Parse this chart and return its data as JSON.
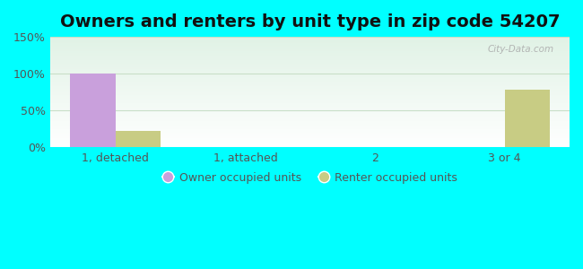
{
  "title": "Owners and renters by unit type in zip code 54207",
  "categories": [
    "1, detached",
    "1, attached",
    "2",
    "3 or 4"
  ],
  "owner_values": [
    100,
    0,
    0,
    0
  ],
  "renter_values": [
    22,
    0,
    0,
    78
  ],
  "owner_color": "#c9a0dc",
  "renter_color": "#c8cc84",
  "ylim": [
    0,
    150
  ],
  "yticks": [
    0,
    50,
    100,
    150
  ],
  "yticklabels": [
    "0%",
    "50%",
    "100%",
    "150%"
  ],
  "bar_width": 0.35,
  "background_outer": "#00ffff",
  "grid_color": "#c8dfc8",
  "title_fontsize": 14,
  "legend_labels": [
    "Owner occupied units",
    "Renter occupied units"
  ],
  "watermark": "City-Data.com"
}
